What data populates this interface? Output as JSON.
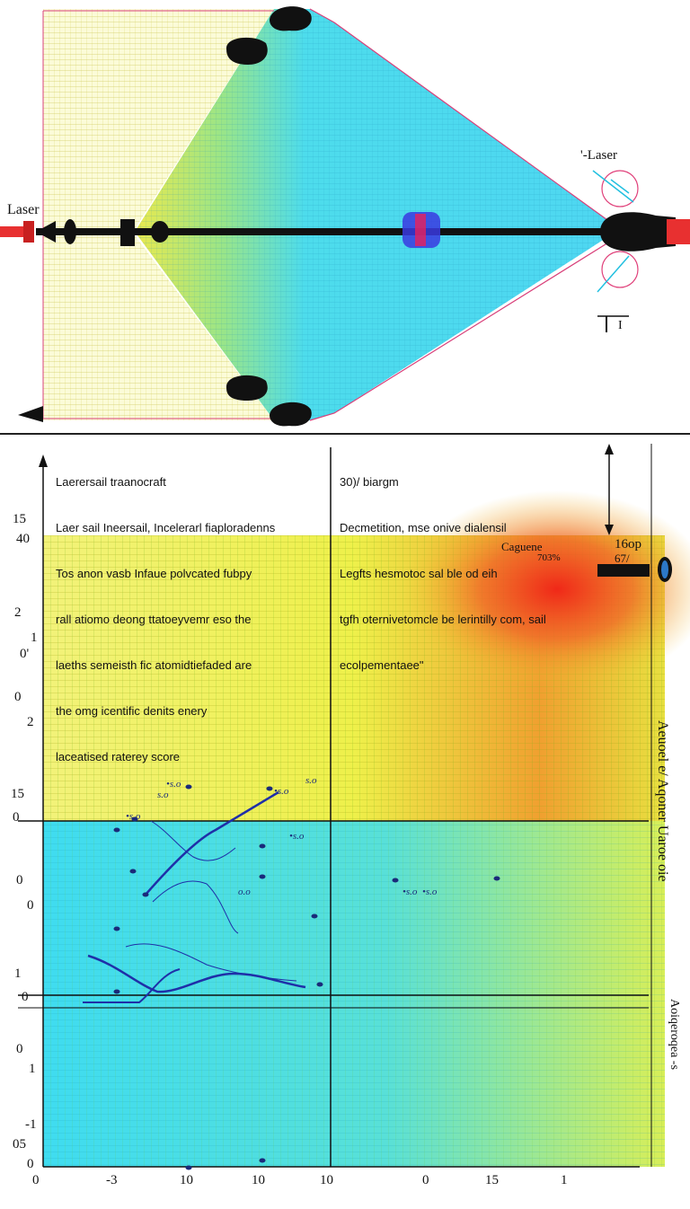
{
  "top_diagram": {
    "laser_left_label": "Laser",
    "laser_right_label": "'-Laser",
    "scale_mark": "I"
  },
  "bottom_chart": {
    "note_left_lines": [
      "Laerersail traanocraft",
      "Laer sail Ineersail, Incelerarl fiaploradenns",
      "Tos anon vasb Infaue polvcated fubpy",
      "rall atiomo deong ttatoeyvemr eso the",
      "laeths semeisth fic atomidtiefaded are",
      "the omg icentific denits enery",
      "laceatised raterey score"
    ],
    "note_right_lines": [
      "30)/ biargm",
      "Decmetition, mse onive dialensil",
      "Legfts hesmotoc sal ble od eih",
      "tgfh oternivetomcle be lerintilly com, sail",
      "ecolpementaee\""
    ],
    "callout_label_1": "Caguene",
    "callout_label_2": "703%",
    "callout_label_3": "16op",
    "callout_label_4": "67/",
    "y_ticks": [
      "15",
      "40",
      "2",
      "1",
      "0'",
      "0",
      "2",
      "15",
      "0",
      "0",
      "0",
      "1",
      "0",
      "0",
      "1",
      "-1",
      "05",
      "0"
    ],
    "x_ticks": [
      "0",
      "-3",
      "10",
      "10",
      "10",
      "0",
      "15",
      "1"
    ],
    "right_axis_label_1": "Aeuoel e/ Aqoner Uaroe oie",
    "right_axis_label_2": "Aoiqeroqea -s",
    "point_labels": [
      "•s.o",
      "s.o",
      "•s.o",
      "•s.o",
      "o.o",
      "•s.o",
      "•s.o",
      "•s.o",
      "s.o"
    ],
    "colors": {
      "beam_cyan": "#33d6ee",
      "field_yellow": "#e3e83a",
      "hot_red": "#f03020",
      "trace_blue": "#1f2fa8"
    }
  }
}
